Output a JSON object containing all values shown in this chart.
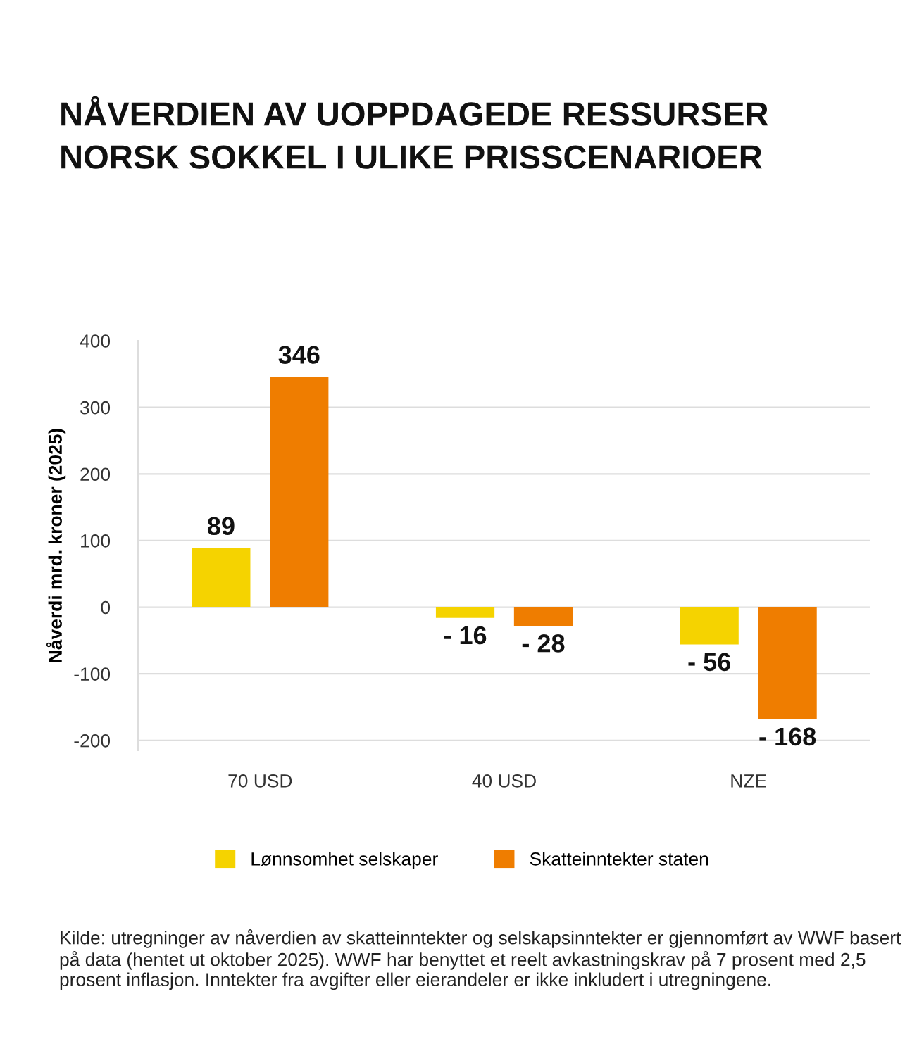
{
  "chart_data": {
    "type": "bar",
    "title": "NÅVERDIEN AV UOPPDAGEDE RESSURSER\nNORSK SOKKEL I ULIKE PRISSCENARIOER",
    "ylabel": "Nåverdi mrd. kroner (2025)",
    "categories": [
      "70 USD",
      "40 USD",
      "NZE"
    ],
    "series": [
      {
        "name": "Lønnsomhet selskaper",
        "color": "#f5d300",
        "values": [
          89,
          -16,
          -56
        ],
        "value_labels": [
          "89",
          "- 16",
          "- 56"
        ]
      },
      {
        "name": "Skatteinntekter staten",
        "color": "#ef7d00",
        "values": [
          346,
          -28,
          -168
        ],
        "value_labels": [
          "346",
          "- 28",
          "- 168"
        ]
      }
    ],
    "ylim": [
      -215,
      400
    ],
    "yticks": [
      -200,
      -100,
      0,
      100,
      200,
      300,
      400
    ],
    "grid": "y",
    "legend": "bottom",
    "annotations": [
      "Kilde: utregninger av nåverdien av skatteinntekter og selskapsinntekter er gjennomført av WWF basert på data (hentet ut oktober 2025). WWF har benyttet et reelt avkastningskrav på 7 prosent med 2,5 prosent inflasjon. Inntekter fra avgifter eller eierandeler er ikke inkludert i utregningene."
    ]
  }
}
